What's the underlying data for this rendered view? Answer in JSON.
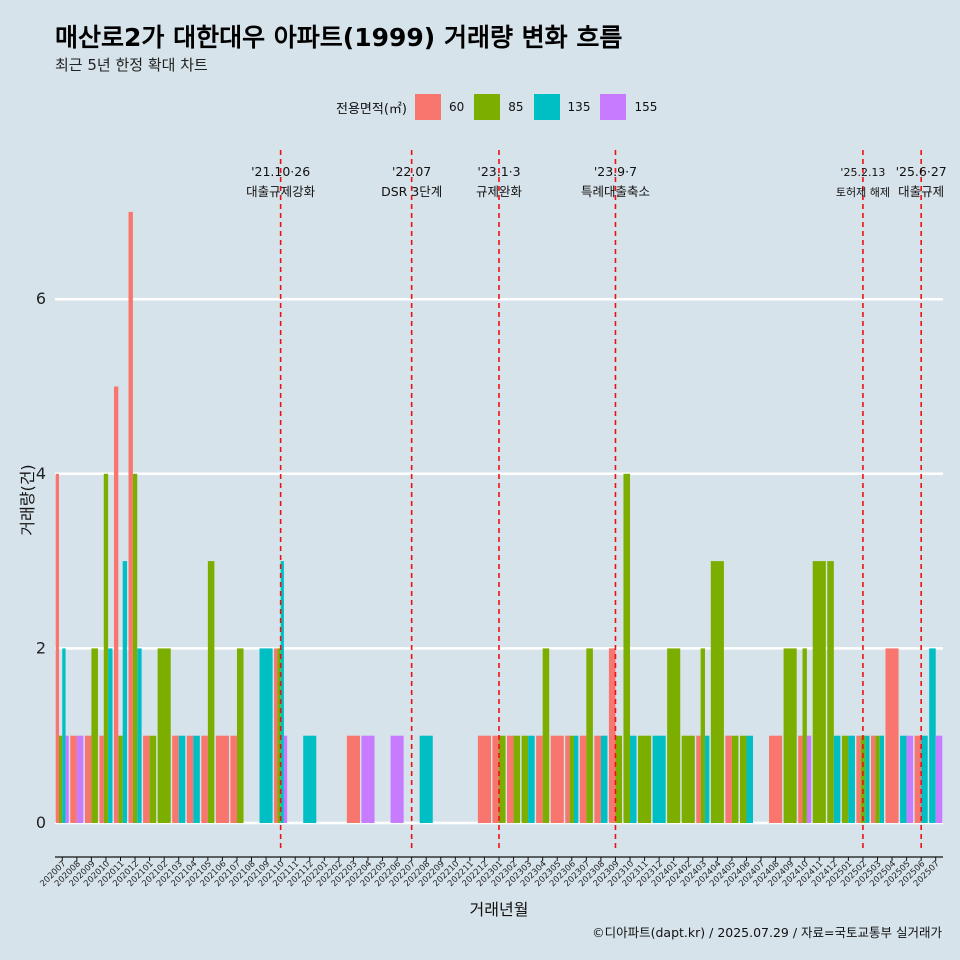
{
  "title": "매산로2가 대한대우 아파트(1999) 거래량 변화 흐름",
  "subtitle": "최근 5년 한정 확대 차트",
  "caption": "©디아파트(dapt.kr) / 2025.07.29 / 자료=국토교통부 실거래가",
  "legend": {
    "title": "전용면적(㎡)",
    "items": [
      {
        "label": "60",
        "color": "#f8766d"
      },
      {
        "label": "85",
        "color": "#7cae00"
      },
      {
        "label": "135",
        "color": "#00bfc4"
      },
      {
        "label": "155",
        "color": "#c77cff"
      }
    ]
  },
  "chart_data": {
    "type": "bar",
    "title": "매산로2가 대한대우 아파트(1999) 거래량 변화 흐름",
    "subtitle": "최근 5년 한정 확대 차트",
    "xlabel": "거래년월",
    "ylabel": "거래량(건)",
    "ylim": [
      0,
      7
    ],
    "yticks": [
      0,
      2,
      4,
      6
    ],
    "grid": true,
    "legend_position": "top",
    "categories": [
      "202007",
      "202008",
      "202009",
      "202010",
      "202011",
      "202012",
      "202101",
      "202102",
      "202103",
      "202104",
      "202105",
      "202106",
      "202107",
      "202108",
      "202109",
      "202110",
      "202111",
      "202112",
      "202201",
      "202202",
      "202203",
      "202204",
      "202205",
      "202206",
      "202207",
      "202208",
      "202209",
      "202210",
      "202211",
      "202212",
      "202301",
      "202302",
      "202303",
      "202304",
      "202305",
      "202306",
      "202307",
      "202308",
      "202309",
      "202310",
      "202311",
      "202312",
      "202401",
      "202402",
      "202403",
      "202404",
      "202405",
      "202406",
      "202407",
      "202408",
      "202409",
      "202410",
      "202411",
      "202412",
      "202501",
      "202502",
      "202503",
      "202504",
      "202505",
      "202506",
      "202507"
    ],
    "series": [
      {
        "name": "60",
        "color": "#f8766d",
        "values": [
          [
            0,
            4
          ],
          [
            1,
            1
          ],
          [
            2,
            1
          ],
          [
            3,
            1
          ],
          [
            4,
            5
          ],
          [
            5,
            7
          ],
          [
            6,
            1
          ],
          [
            8,
            1
          ],
          [
            9,
            1
          ],
          [
            10,
            1
          ],
          [
            11,
            1
          ],
          [
            12,
            1
          ],
          [
            15,
            2
          ],
          [
            20,
            1
          ],
          [
            29,
            1
          ],
          [
            30,
            1
          ],
          [
            31,
            1
          ],
          [
            33,
            1
          ],
          [
            34,
            1
          ],
          [
            35,
            1
          ],
          [
            36,
            1
          ],
          [
            37,
            1
          ],
          [
            38,
            2
          ],
          [
            44,
            1
          ],
          [
            46,
            1
          ],
          [
            49,
            1
          ],
          [
            51,
            1
          ],
          [
            55,
            1
          ],
          [
            56,
            1
          ],
          [
            57,
            2
          ],
          [
            59,
            1
          ]
        ]
      },
      {
        "name": "85",
        "color": "#7cae00",
        "values": [
          [
            0,
            1
          ],
          [
            2,
            2
          ],
          [
            3,
            4
          ],
          [
            4,
            1
          ],
          [
            5,
            4
          ],
          [
            6,
            1
          ],
          [
            7,
            2
          ],
          [
            10,
            3
          ],
          [
            12,
            2
          ],
          [
            15,
            2
          ],
          [
            30,
            1
          ],
          [
            31,
            1
          ],
          [
            32,
            1
          ],
          [
            33,
            2
          ],
          [
            35,
            1
          ],
          [
            36,
            2
          ],
          [
            38,
            1
          ],
          [
            39,
            4
          ],
          [
            40,
            1
          ],
          [
            42,
            2
          ],
          [
            43,
            1
          ],
          [
            44,
            2
          ],
          [
            45,
            3
          ],
          [
            46,
            1
          ],
          [
            47,
            1
          ],
          [
            50,
            2
          ],
          [
            51,
            2
          ],
          [
            52,
            3
          ],
          [
            53,
            3
          ],
          [
            54,
            1
          ],
          [
            55,
            1
          ],
          [
            56,
            1
          ]
        ]
      },
      {
        "name": "135",
        "color": "#00bfc4",
        "values": [
          [
            0,
            2
          ],
          [
            3,
            2
          ],
          [
            4,
            3
          ],
          [
            5,
            2
          ],
          [
            8,
            1
          ],
          [
            9,
            1
          ],
          [
            14,
            2
          ],
          [
            15,
            3
          ],
          [
            17,
            1
          ],
          [
            25,
            1
          ],
          [
            32,
            1
          ],
          [
            35,
            1
          ],
          [
            37,
            1
          ],
          [
            39,
            1
          ],
          [
            41,
            1
          ],
          [
            44,
            1
          ],
          [
            47,
            1
          ],
          [
            53,
            1
          ],
          [
            54,
            1
          ],
          [
            55,
            1
          ],
          [
            56,
            1
          ],
          [
            58,
            1
          ],
          [
            59,
            1
          ],
          [
            60,
            2
          ]
        ]
      },
      {
        "name": "155",
        "color": "#c77cff",
        "values": [
          [
            0,
            1
          ],
          [
            1,
            1
          ],
          [
            15,
            1
          ],
          [
            21,
            1
          ],
          [
            23,
            1
          ],
          [
            51,
            1
          ],
          [
            58,
            1
          ],
          [
            60,
            1
          ]
        ]
      }
    ],
    "annotations": [
      {
        "category": "202110",
        "date": "'21.10·26",
        "label": "대출규제강화"
      },
      {
        "category": "202207",
        "date": "'22.07",
        "label": "DSR 3단계"
      },
      {
        "category": "202301",
        "date": "'23.1·3",
        "label": "규제완화"
      },
      {
        "category": "202309",
        "date": "'23.9·7",
        "label": "특례대출축소"
      },
      {
        "category": "202502",
        "date": "'25.2.13",
        "label": "토허제 해제"
      },
      {
        "category": "202506",
        "date": "'25.6·27",
        "label": "대출규제"
      }
    ]
  }
}
